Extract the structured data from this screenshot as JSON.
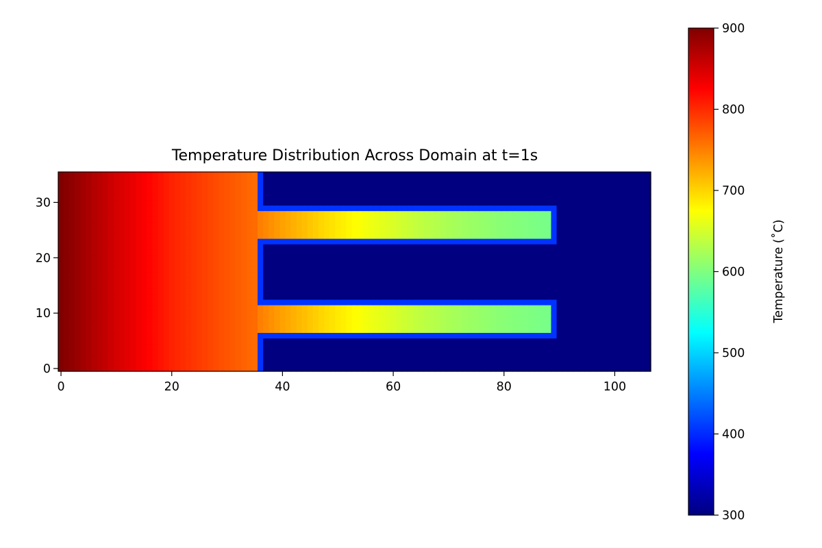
{
  "chart_data": {
    "type": "heatmap",
    "title": "Temperature Distribution Across Domain at t=1s",
    "xlabel": "",
    "ylabel": "",
    "colormap": "jet",
    "x_range": [
      -0.5,
      106.5
    ],
    "y_range": [
      -0.5,
      35.5
    ],
    "x_ticks": [
      0,
      20,
      40,
      60,
      80,
      100
    ],
    "y_ticks": [
      0,
      10,
      20,
      30
    ],
    "colorbar": {
      "label": "Temperature (˚C)",
      "range": [
        300,
        900
      ],
      "ticks": [
        300,
        400,
        500,
        600,
        700,
        800,
        900
      ]
    },
    "grid": false,
    "regions": [
      {
        "name": "base block",
        "x_range": [
          0,
          35
        ],
        "y_range": [
          0,
          35
        ],
        "profile": [
          [
            0,
            900
          ],
          [
            10,
            850
          ],
          [
            20,
            805
          ],
          [
            30,
            775
          ],
          [
            35,
            762
          ]
        ]
      },
      {
        "name": "upper fin",
        "x_range": [
          36,
          88
        ],
        "y_range": [
          24,
          28
        ],
        "profile": [
          [
            36,
            750
          ],
          [
            40,
            730
          ],
          [
            48,
            695
          ],
          [
            56,
            665
          ],
          [
            64,
            640
          ],
          [
            72,
            620
          ],
          [
            80,
            605
          ],
          [
            88,
            595
          ]
        ]
      },
      {
        "name": "lower fin",
        "x_range": [
          36,
          88
        ],
        "y_range": [
          7,
          11
        ],
        "profile": [
          [
            36,
            750
          ],
          [
            40,
            730
          ],
          [
            48,
            695
          ],
          [
            56,
            665
          ],
          [
            64,
            640
          ],
          [
            72,
            620
          ],
          [
            80,
            605
          ],
          [
            88,
            595
          ]
        ]
      },
      {
        "name": "ambient",
        "value": 300
      }
    ],
    "boundary_value": 405
  }
}
